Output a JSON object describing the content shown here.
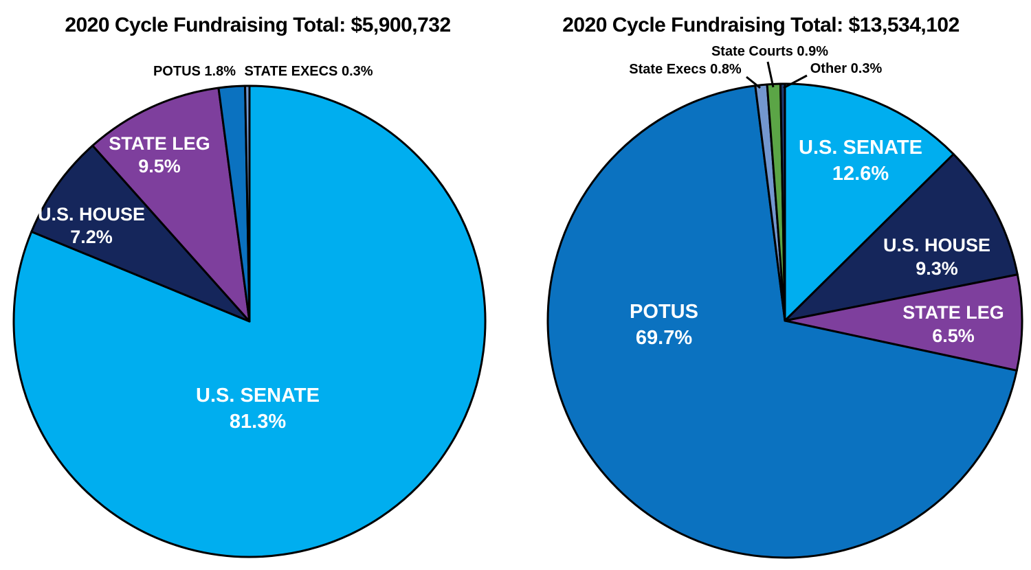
{
  "page_background": "#ffffff",
  "stroke_color": "#000000",
  "inside_label_color": "#ffffff",
  "outside_label_color": "#000000",
  "chart_data": [
    {
      "type": "pie",
      "title": "2020 Cycle Fundraising Total: $5,900,732",
      "total": "$5,900,732",
      "cycle": "2020",
      "legend_position": "none",
      "label_format": "NAME PCT%",
      "slices": [
        {
          "label": "U.S. SENATE",
          "pct": 81.3,
          "color": "#00AEEF"
        },
        {
          "label": "U.S. HOUSE",
          "pct": 7.2,
          "color": "#15265B"
        },
        {
          "label": "STATE LEG",
          "pct": 9.5,
          "color": "#7E3F9D"
        },
        {
          "label": "POTUS",
          "pct": 1.8,
          "color": "#0B72C0"
        },
        {
          "label": "STATE EXECS",
          "pct": 0.3,
          "color": "#7397CF"
        }
      ]
    },
    {
      "type": "pie",
      "title": "2020 Cycle Fundraising Total: $13,534,102",
      "total": "$13,534,102",
      "cycle": "2020",
      "legend_position": "none",
      "label_format": "NAME PCT%",
      "slices": [
        {
          "label": "U.S. SENATE",
          "pct": 12.6,
          "color": "#00AEEF"
        },
        {
          "label": "U.S. HOUSE",
          "pct": 9.3,
          "color": "#15265B"
        },
        {
          "label": "STATE LEG",
          "pct": 6.5,
          "color": "#7E3F9D"
        },
        {
          "label": "POTUS",
          "pct": 69.7,
          "color": "#0B72C0"
        },
        {
          "label": "State Execs",
          "pct": 0.8,
          "color": "#7397CF"
        },
        {
          "label": "State Courts",
          "pct": 0.9,
          "color": "#5BA546"
        },
        {
          "label": "Other",
          "pct": 0.3,
          "color": "#1E3A72"
        }
      ]
    }
  ]
}
